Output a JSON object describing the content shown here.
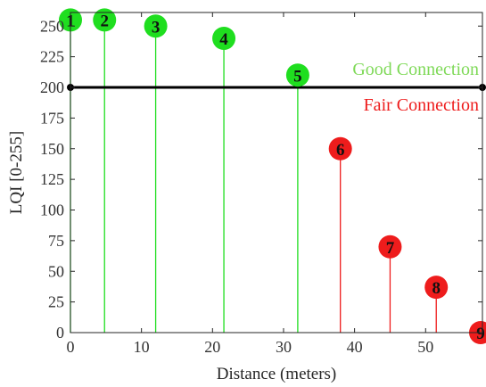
{
  "chart_data": {
    "type": "stem",
    "title": "",
    "xlabel": "Distance (meters)",
    "ylabel": "LQI [0-255]",
    "xlim": [
      0,
      58
    ],
    "ylim": [
      0,
      255
    ],
    "xticks": [
      0,
      10,
      20,
      30,
      40,
      50
    ],
    "yticks": [
      0,
      25,
      50,
      75,
      100,
      125,
      150,
      175,
      200,
      225,
      250
    ],
    "grid": false,
    "threshold": {
      "value": 200,
      "color": "#000000"
    },
    "annotations": [
      {
        "text": "Good Connection",
        "color": "#7ed957"
      },
      {
        "text": "Fair Connection",
        "color": "#ee1c1c"
      }
    ],
    "points": [
      {
        "label": "1",
        "x": 0,
        "y": 255,
        "color": "#1fde1f"
      },
      {
        "label": "2",
        "x": 4.8,
        "y": 255,
        "color": "#1fde1f"
      },
      {
        "label": "3",
        "x": 12,
        "y": 250,
        "color": "#1fde1f"
      },
      {
        "label": "4",
        "x": 21.6,
        "y": 240,
        "color": "#1fde1f"
      },
      {
        "label": "5",
        "x": 32,
        "y": 210,
        "color": "#1fde1f"
      },
      {
        "label": "6",
        "x": 38,
        "y": 150,
        "color": "#ee1c1c"
      },
      {
        "label": "7",
        "x": 45,
        "y": 70,
        "color": "#ee1c1c"
      },
      {
        "label": "8",
        "x": 51.5,
        "y": 37,
        "color": "#ee1c1c"
      },
      {
        "label": "9",
        "x": 59,
        "y": 0,
        "color": "#ee1c1c"
      }
    ]
  }
}
